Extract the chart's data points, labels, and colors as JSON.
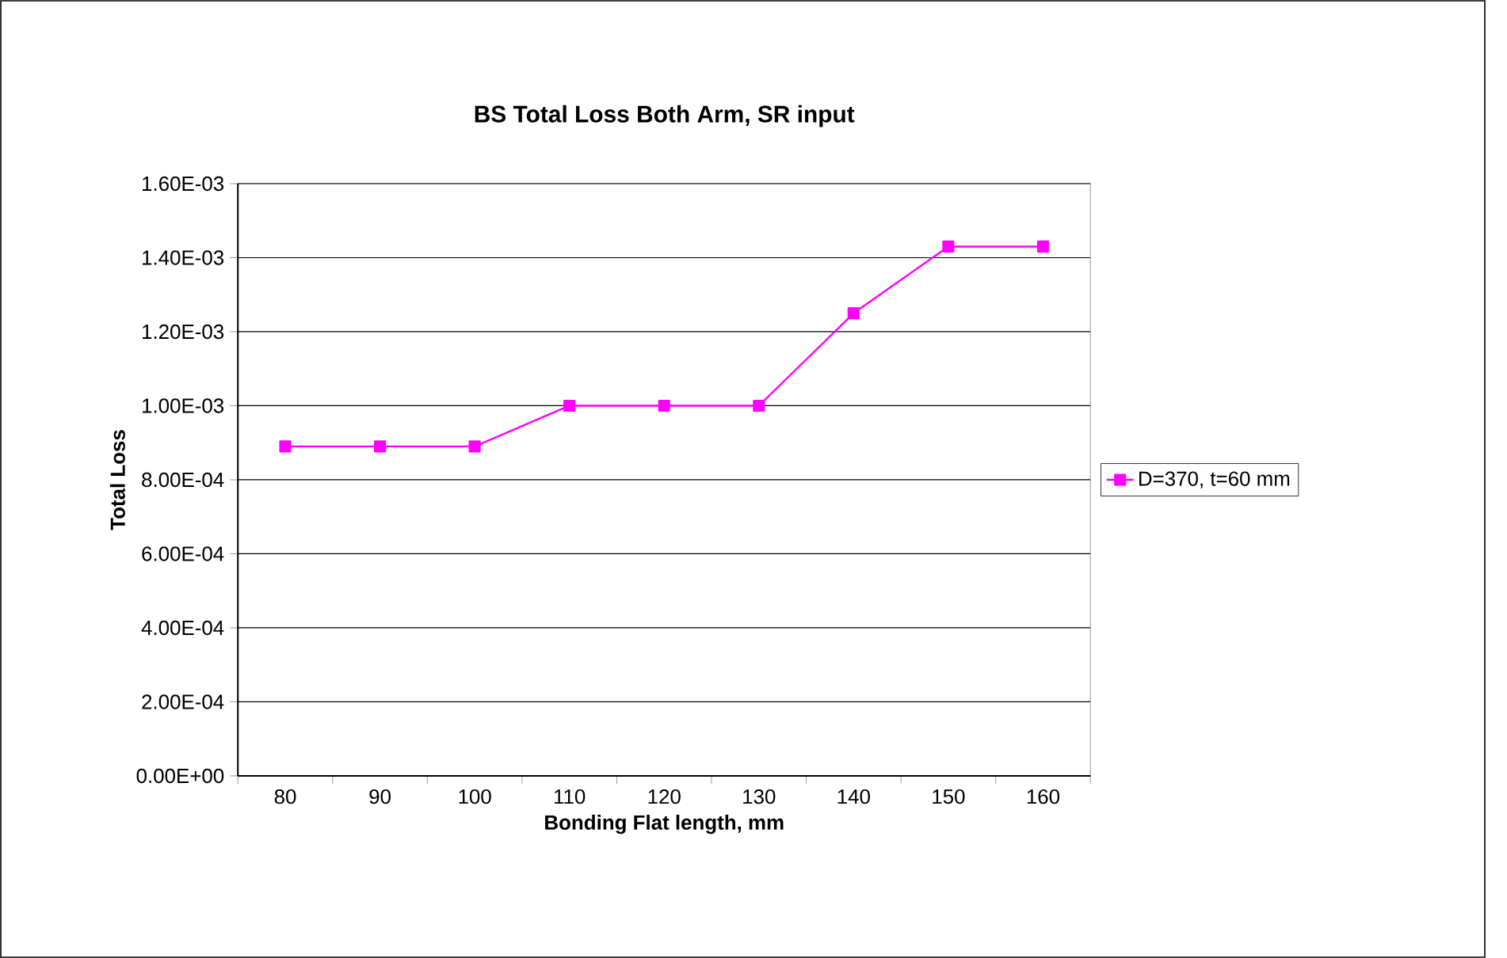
{
  "chart_data": {
    "type": "line",
    "title": "BS Total Loss Both Arm, SR input",
    "xlabel": "Bonding Flat length,  mm",
    "ylabel": "Total Loss",
    "categories": [
      "80",
      "90",
      "100",
      "110",
      "120",
      "130",
      "140",
      "150",
      "160"
    ],
    "series": [
      {
        "name": "D=370, t=60 mm",
        "color": "#ff00ff",
        "values": [
          0.00089,
          0.00089,
          0.00089,
          0.001,
          0.001,
          0.001,
          0.00125,
          0.00143,
          0.00143
        ]
      }
    ],
    "ylim": [
      0,
      0.0016
    ],
    "yticks": [
      {
        "value": 0,
        "label": "0.00E+00"
      },
      {
        "value": 0.0002,
        "label": "2.00E-04"
      },
      {
        "value": 0.0004,
        "label": "4.00E-04"
      },
      {
        "value": 0.0006,
        "label": "6.00E-04"
      },
      {
        "value": 0.0008,
        "label": "8.00E-04"
      },
      {
        "value": 0.001,
        "label": "1.00E-03"
      },
      {
        "value": 0.0012,
        "label": "1.20E-03"
      },
      {
        "value": 0.0014,
        "label": "1.40E-03"
      },
      {
        "value": 0.0016,
        "label": "1.60E-03"
      }
    ],
    "grid": "y",
    "legend": "right",
    "marker": "square",
    "line_style": "solid"
  }
}
